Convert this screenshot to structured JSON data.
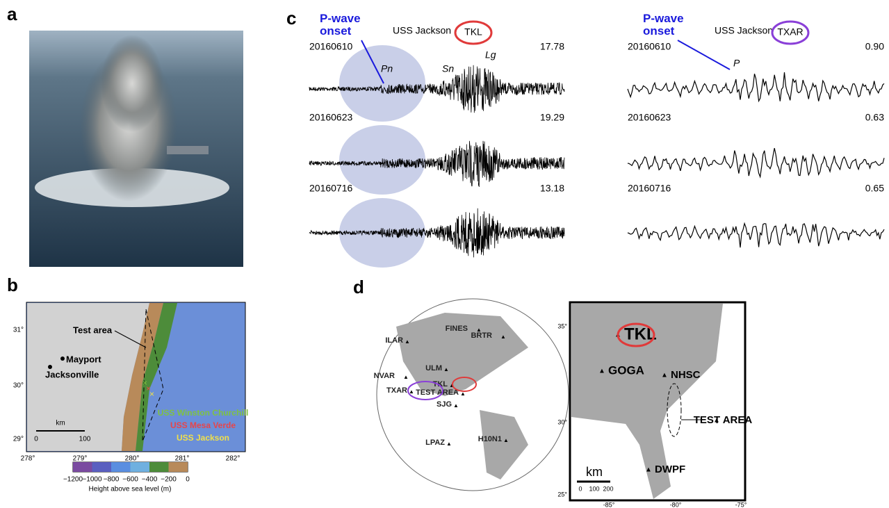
{
  "panel_labels": [
    "a",
    "b",
    "c",
    "d"
  ],
  "map_b": {
    "lat_ticks": [
      "31°",
      "30°",
      "29°"
    ],
    "lon_ticks": [
      "278°",
      "279°",
      "280°",
      "281°",
      "282°"
    ],
    "places": [
      "Test area",
      "Mayport",
      "Jacksonville"
    ],
    "ships": [
      {
        "name": "USS Winston Churchill",
        "color": "#7fc241"
      },
      {
        "name": "USS Mesa Verde",
        "color": "#e8454a"
      },
      {
        "name": "USS Jackson",
        "color": "#f0e04a"
      }
    ],
    "scale": {
      "unit": "km",
      "ticks": [
        "0",
        "100"
      ]
    },
    "colorbar": {
      "ticks": [
        "−1200",
        "−1000",
        "−800",
        "−600",
        "−400",
        "−200",
        "0"
      ],
      "title": "Height above sea level (m)"
    }
  },
  "seismograms": {
    "onset_label": "P-wave onset",
    "ship": "USS Jackson",
    "columns": [
      {
        "station": "TKL",
        "color": "#e03a3a",
        "rows": [
          [
            "20160610",
            "17.78"
          ],
          [
            "20160623",
            "19.29"
          ],
          [
            "20160716",
            "13.18"
          ]
        ],
        "phases": [
          "Pn",
          "Sn",
          "Lg"
        ]
      },
      {
        "station": "TXAR",
        "color": "#8a3fd8",
        "rows": [
          [
            "20160610",
            "0.90"
          ],
          [
            "20160623",
            "0.63"
          ],
          [
            "20160716",
            "0.65"
          ]
        ],
        "phases": [
          "P"
        ]
      }
    ]
  },
  "map_d": {
    "globe_stations": [
      "FINES",
      "BRTR",
      "ILAR",
      "ULM",
      "NVAR",
      "TKL",
      "TXAR",
      "TEST AREA",
      "SJG",
      "H10N1",
      "LPAZ"
    ],
    "us_stations": [
      "TKL",
      "GOGA",
      "NHSC",
      "TEST AREA",
      "DWPF"
    ],
    "scale": {
      "unit": "km",
      "ticks": [
        "0",
        "100",
        "200"
      ]
    },
    "lat_ticks": [
      "35°",
      "30°",
      "25°"
    ],
    "lon_ticks": [
      "-85°",
      "-80°",
      "-75°"
    ]
  }
}
